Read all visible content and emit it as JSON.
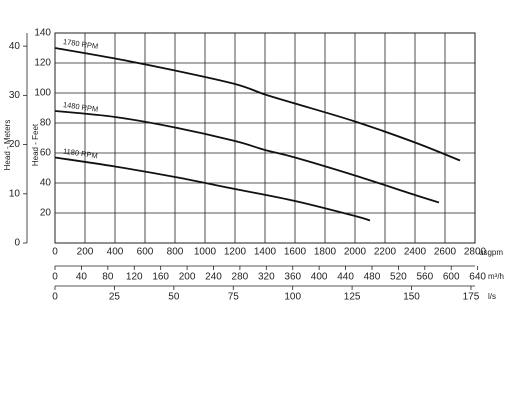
{
  "chart_data": {
    "type": "line",
    "xlabel": "usgpm",
    "ylabel": "Head - Feet",
    "y2label": "Head - Meters",
    "xlim": [
      0,
      2800
    ],
    "xticks": [
      0,
      200,
      400,
      600,
      800,
      1000,
      1200,
      1400,
      1600,
      1800,
      2000,
      2200,
      2400,
      2600,
      2800
    ],
    "ylim": [
      0,
      140
    ],
    "yticks": [
      20,
      40,
      60,
      80,
      100,
      120,
      140
    ],
    "y2lim": [
      0,
      42.67
    ],
    "y2ticks": [
      0,
      10,
      20,
      30,
      40
    ],
    "grid": true,
    "secondary_x_axes": [
      {
        "label": "m³/h",
        "xlim": [
          0,
          636
        ],
        "xticks": [
          0,
          40,
          80,
          120,
          160,
          200,
          240,
          280,
          320,
          360,
          400,
          440,
          480,
          520,
          560,
          600,
          640
        ]
      },
      {
        "label": "l/s",
        "xlim": [
          0,
          176.7
        ],
        "xticks": [
          0,
          25,
          50,
          75,
          100,
          125,
          150,
          175
        ]
      }
    ],
    "series": [
      {
        "name": "1780 RPM",
        "color": "#111111",
        "x": [
          0,
          400,
          800,
          1200,
          1400,
          1600,
          2000,
          2400,
          2700
        ],
        "values": [
          130,
          123,
          115,
          106,
          99,
          93,
          81,
          67,
          55
        ]
      },
      {
        "name": "1480 RPM",
        "color": "#111111",
        "x": [
          0,
          400,
          800,
          1200,
          1400,
          1600,
          2000,
          2400,
          2560
        ],
        "values": [
          88,
          84,
          77,
          68,
          62,
          57,
          45,
          32,
          27
        ]
      },
      {
        "name": "1180 RPM",
        "color": "#111111",
        "x": [
          0,
          400,
          800,
          1200,
          1600,
          2000,
          2100
        ],
        "values": [
          57,
          51,
          44,
          36,
          28,
          18,
          15
        ]
      }
    ]
  }
}
